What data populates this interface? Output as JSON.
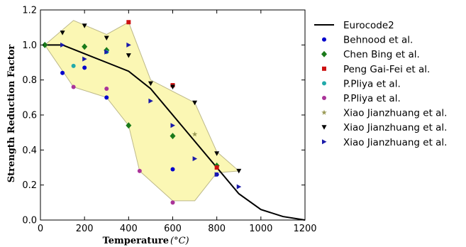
{
  "chart_data": {
    "type": "scatter",
    "title": "",
    "xlabel": "Temperature",
    "xunit": "(°C)",
    "ylabel": "Strength Reduction Factor",
    "xlim": [
      0,
      1200
    ],
    "ylim": [
      0,
      1.2
    ],
    "xticks": [
      "0",
      "200",
      "400",
      "600",
      "800",
      "1000",
      "1200"
    ],
    "yticks": [
      "0.0",
      "0.2",
      "0.4",
      "0.6",
      "0.8",
      "1.0",
      "1.2"
    ],
    "xtick_values": [
      0,
      200,
      400,
      600,
      800,
      1000,
      1200
    ],
    "ytick_values": [
      0,
      0.2,
      0.4,
      0.6,
      0.8,
      1.0,
      1.2
    ],
    "grid": false,
    "legend_position": "outside-right",
    "envelope": {
      "fill": "#fbf7b4",
      "stroke": "#bdb98a",
      "points": [
        [
          20,
          1.0
        ],
        [
          150,
          1.14
        ],
        [
          300,
          1.06
        ],
        [
          400,
          1.13
        ],
        [
          500,
          0.8
        ],
        [
          700,
          0.67
        ],
        [
          800,
          0.39
        ],
        [
          900,
          0.28
        ],
        [
          800,
          0.27
        ],
        [
          700,
          0.11
        ],
        [
          600,
          0.11
        ],
        [
          450,
          0.28
        ],
        [
          400,
          0.54
        ],
        [
          300,
          0.7
        ],
        [
          150,
          0.76
        ],
        [
          20,
          1.0
        ]
      ]
    },
    "series": [
      {
        "name": "Eurocode2",
        "kind": "line",
        "color": "#000000",
        "x": [
          20,
          100,
          200,
          300,
          400,
          500,
          600,
          700,
          800,
          900,
          1000,
          1100,
          1200
        ],
        "y": [
          1.0,
          1.0,
          0.95,
          0.9,
          0.85,
          0.75,
          0.6,
          0.45,
          0.3,
          0.15,
          0.06,
          0.02,
          0.0
        ]
      },
      {
        "name": "Behnood et al.",
        "kind": "marker",
        "marker": "circle",
        "color": "#0000cc",
        "x": [
          20,
          100,
          200,
          300,
          600,
          800
        ],
        "y": [
          1.0,
          0.84,
          0.87,
          0.7,
          0.29,
          0.26
        ]
      },
      {
        "name": "Chen Bing et al.",
        "kind": "marker",
        "marker": "diamond",
        "color": "#1a7a1a",
        "x": [
          20,
          200,
          300,
          400,
          600,
          800
        ],
        "y": [
          1.0,
          0.99,
          0.97,
          0.54,
          0.48,
          0.31
        ]
      },
      {
        "name": "Peng Gai-Fei et al.",
        "kind": "marker",
        "marker": "square",
        "color": "#cc1111",
        "x": [
          400,
          600,
          800
        ],
        "y": [
          1.13,
          0.77,
          0.3
        ]
      },
      {
        "name": "P.Pliya et al.",
        "kind": "marker",
        "marker": "circle",
        "color": "#22aaaa",
        "x": [
          150,
          300
        ],
        "y": [
          0.88,
          0.96
        ]
      },
      {
        "name": "P.Pliya et al.",
        "kind": "marker",
        "marker": "circle",
        "color": "#aa3399",
        "x": [
          150,
          300,
          450,
          600
        ],
        "y": [
          0.76,
          0.75,
          0.28,
          0.1
        ]
      },
      {
        "name": "Xiao Jianzhuang et al.",
        "kind": "marker",
        "marker": "star",
        "color": "#9a9a55",
        "x": [
          700
        ],
        "y": [
          0.49
        ]
      },
      {
        "name": "Xiao Jianzhuang et al.",
        "kind": "marker",
        "marker": "tri-down",
        "color": "#000000",
        "x": [
          100,
          200,
          300,
          400,
          500,
          600,
          700,
          800,
          900
        ],
        "y": [
          1.07,
          1.11,
          1.04,
          0.94,
          0.78,
          0.76,
          0.67,
          0.38,
          0.28
        ]
      },
      {
        "name": "Xiao Jianzhuang et al.",
        "kind": "marker",
        "marker": "tri-right",
        "color": "#1a1aaa",
        "x": [
          100,
          200,
          300,
          400,
          500,
          600,
          700,
          800,
          900
        ],
        "y": [
          1.0,
          0.92,
          0.96,
          1.0,
          0.68,
          0.54,
          0.35,
          0.26,
          0.19
        ]
      }
    ]
  }
}
